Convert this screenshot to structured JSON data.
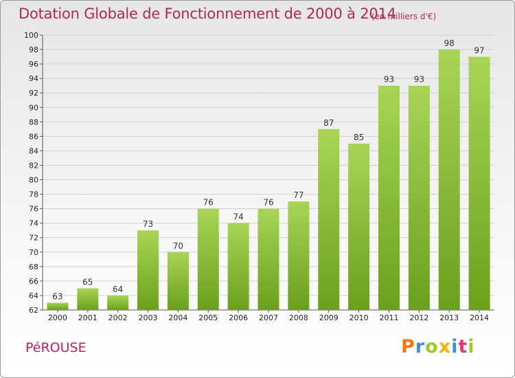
{
  "header": {
    "title": "Dotation Globale de Fonctionnement de 2000 à 2014",
    "subtitle": "(en milliers d'€)"
  },
  "footer": {
    "town": "PéROUSE",
    "logo": {
      "letters": [
        "P",
        "r",
        "o",
        "x",
        "i",
        "t",
        "i"
      ],
      "colors": [
        "#f07a12",
        "#3a8fd6",
        "#9cc928",
        "#f0b512",
        "#3a8fd6",
        "#e23b7a",
        "#9cc928"
      ]
    }
  },
  "colors": {
    "bar_light": "#a8d557",
    "bar_dark": "#6aa01c",
    "title": "#b5245c"
  },
  "chart_data": {
    "type": "bar",
    "title": "Dotation Globale de Fonctionnement de 2000 à 2014",
    "xlabel": "",
    "ylabel": "",
    "categories": [
      "2000",
      "2001",
      "2002",
      "2003",
      "2004",
      "2005",
      "2006",
      "2007",
      "2008",
      "2009",
      "2010",
      "2011",
      "2012",
      "2013",
      "2014"
    ],
    "values": [
      63,
      65,
      64,
      73,
      70,
      76,
      74,
      76,
      77,
      87,
      85,
      93,
      93,
      98,
      97
    ],
    "ylim": [
      62,
      100
    ],
    "yticks": [
      62,
      64,
      66,
      68,
      70,
      72,
      74,
      76,
      78,
      80,
      82,
      84,
      86,
      88,
      90,
      92,
      94,
      96,
      98,
      100
    ],
    "grid": true,
    "legend": "none"
  }
}
